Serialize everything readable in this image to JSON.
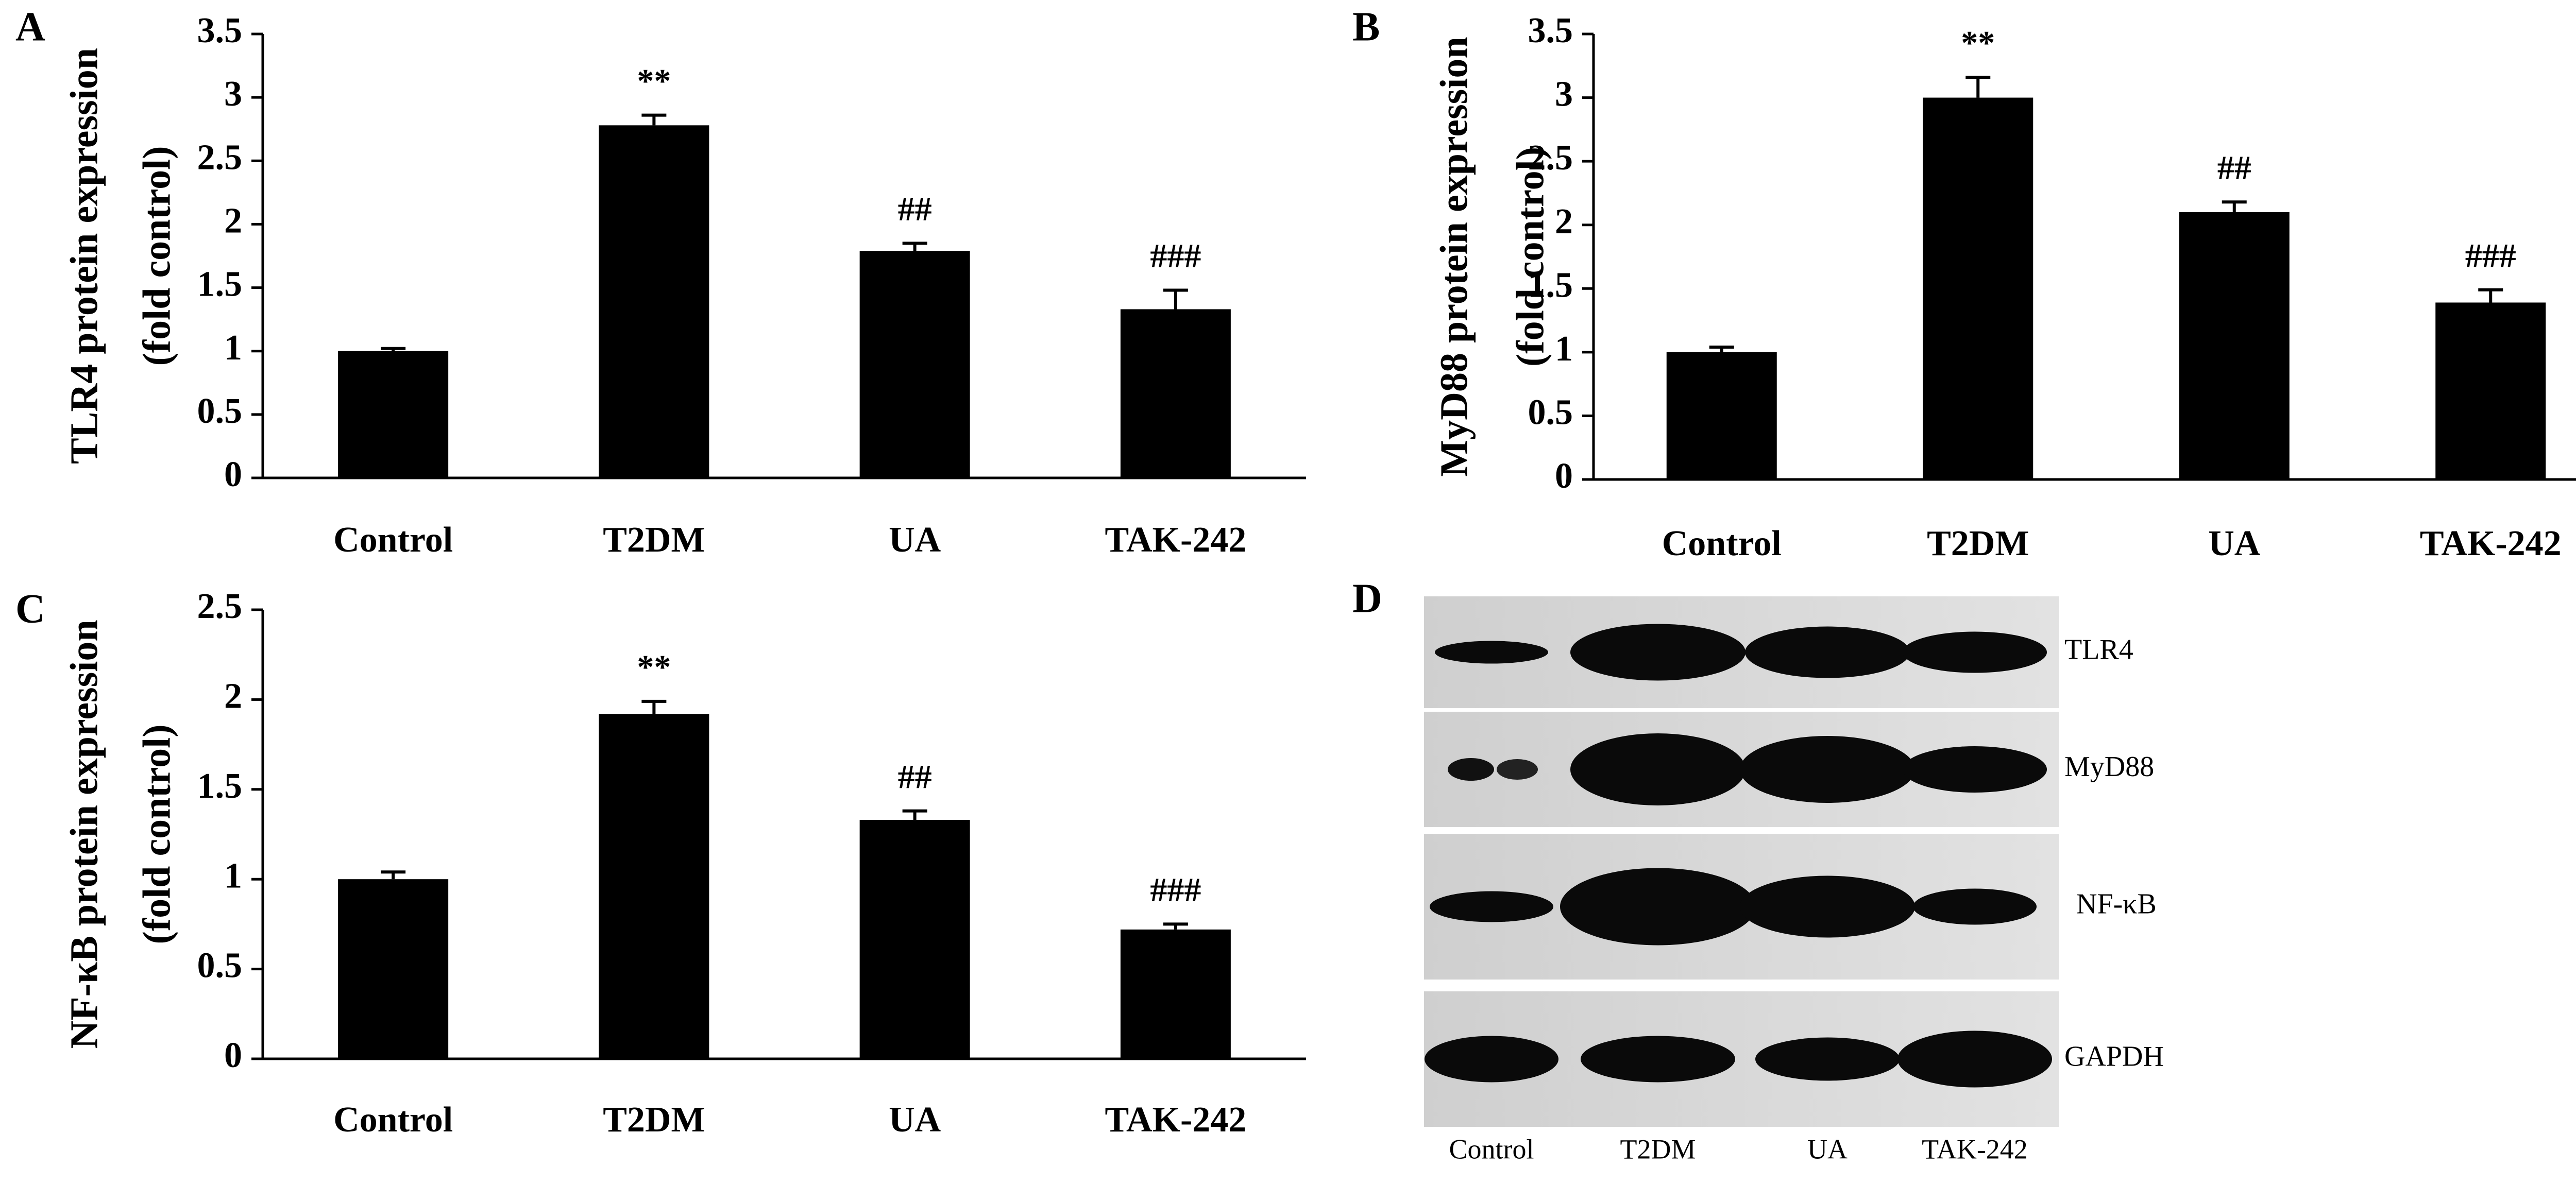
{
  "chart_data": [
    {
      "type": "bar",
      "panel_label": "A",
      "ylabel": [
        "TLR4 protein expression",
        "(fold control)"
      ],
      "categories": [
        "Control",
        "T2DM",
        "UA",
        "TAK-242"
      ],
      "values": [
        1.0,
        2.78,
        1.79,
        1.33
      ],
      "errors": [
        0.02,
        0.08,
        0.06,
        0.15
      ],
      "annotations": [
        null,
        "**",
        "##",
        "###"
      ],
      "color": "#000000",
      "ylim": [
        0,
        3.5
      ],
      "yticks": [
        0,
        0.5,
        1,
        1.5,
        2,
        2.5,
        3,
        3.5
      ]
    },
    {
      "type": "bar",
      "panel_label": "B",
      "ylabel": [
        "MyD88 protein expression",
        "(fold control)"
      ],
      "categories": [
        "Control",
        "T2DM",
        "UA",
        "TAK-242"
      ],
      "values": [
        1.0,
        3.0,
        2.1,
        1.39
      ],
      "errors": [
        0.04,
        0.16,
        0.08,
        0.1
      ],
      "annotations": [
        null,
        "**",
        "##",
        "###"
      ],
      "color": "#000000",
      "ylim": [
        0,
        3.5
      ],
      "yticks": [
        0,
        0.5,
        1,
        1.5,
        2,
        2.5,
        3,
        3.5
      ]
    },
    {
      "type": "bar",
      "panel_label": "C",
      "ylabel": [
        "NF-κB protein expression",
        "(fold control)"
      ],
      "categories": [
        "Control",
        "T2DM",
        "UA",
        "TAK-242"
      ],
      "values": [
        1.0,
        1.92,
        1.33,
        0.72
      ],
      "errors": [
        0.04,
        0.07,
        0.05,
        0.03
      ],
      "annotations": [
        null,
        "**",
        "##",
        "###"
      ],
      "color": "#000000",
      "ylim": [
        0,
        2.5
      ],
      "yticks": [
        0,
        0.5,
        1,
        1.5,
        2,
        2.5
      ]
    }
  ],
  "blot": {
    "panel_label": "D",
    "rows": [
      "TLR4",
      "MyD88",
      "NF-κB",
      "GAPDH"
    ],
    "lanes": [
      "Control",
      "T2DM",
      "UA",
      "TAK-242"
    ]
  }
}
